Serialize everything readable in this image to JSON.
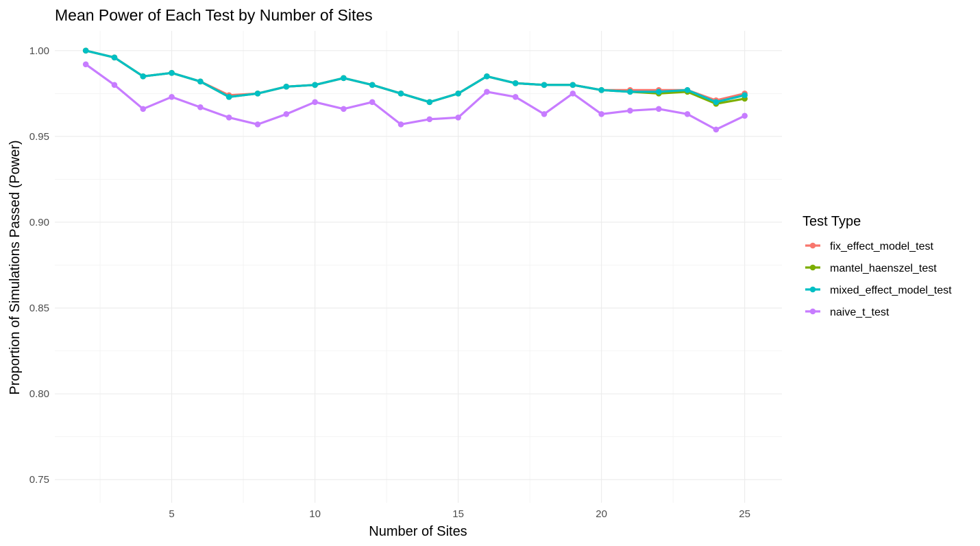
{
  "chart_data": {
    "type": "line",
    "title": "Mean Power of Each Test by Number of Sites",
    "xlabel": "Number of Sites",
    "ylabel": "Proportion of Simulations Passed (Power)",
    "xlim": [
      0.92,
      26.3
    ],
    "ylim": [
      0.7365,
      1.0115
    ],
    "x_ticks": [
      5,
      10,
      15,
      20,
      25
    ],
    "y_ticks": [
      0.75,
      0.8,
      0.85,
      0.9,
      0.95,
      1.0
    ],
    "x_tick_labels": [
      "5",
      "10",
      "15",
      "20",
      "25"
    ],
    "y_tick_labels": [
      "0.75",
      "0.80",
      "0.85",
      "0.90",
      "0.95",
      "1.00"
    ],
    "grid": true,
    "legend_title": "Test Type",
    "legend_position": "right",
    "x": [
      2,
      3,
      4,
      5,
      6,
      7,
      8,
      9,
      10,
      11,
      12,
      13,
      14,
      15,
      16,
      17,
      18,
      19,
      20,
      21,
      22,
      23,
      24,
      25
    ],
    "series": [
      {
        "name": "fix_effect_model_test",
        "color": "#F8766D",
        "values": [
          1.0,
          0.996,
          0.985,
          0.987,
          0.982,
          0.974,
          0.975,
          0.979,
          0.98,
          0.984,
          0.98,
          0.975,
          0.97,
          0.975,
          0.985,
          0.981,
          0.98,
          0.98,
          0.977,
          0.977,
          0.977,
          0.977,
          0.971,
          0.975
        ]
      },
      {
        "name": "mantel_haenszel_test",
        "color": "#7CAE00",
        "values": [
          1.0,
          0.996,
          0.985,
          0.987,
          0.982,
          0.973,
          0.975,
          0.979,
          0.98,
          0.984,
          0.98,
          0.975,
          0.97,
          0.975,
          0.985,
          0.981,
          0.98,
          0.98,
          0.977,
          0.976,
          0.975,
          0.976,
          0.969,
          0.972
        ]
      },
      {
        "name": "mixed_effect_model_test",
        "color": "#00BFC4",
        "values": [
          1.0,
          0.996,
          0.985,
          0.987,
          0.982,
          0.973,
          0.975,
          0.979,
          0.98,
          0.984,
          0.98,
          0.975,
          0.97,
          0.975,
          0.985,
          0.981,
          0.98,
          0.98,
          0.977,
          0.976,
          0.976,
          0.977,
          0.97,
          0.974
        ]
      },
      {
        "name": "naive_t_test",
        "color": "#C77CFF",
        "values": [
          0.992,
          0.98,
          0.966,
          0.973,
          0.967,
          0.961,
          0.957,
          0.963,
          0.97,
          0.966,
          0.97,
          0.957,
          0.96,
          0.961,
          0.976,
          0.973,
          0.963,
          0.975,
          0.963,
          0.965,
          0.966,
          0.963,
          0.954,
          0.962
        ]
      }
    ]
  }
}
